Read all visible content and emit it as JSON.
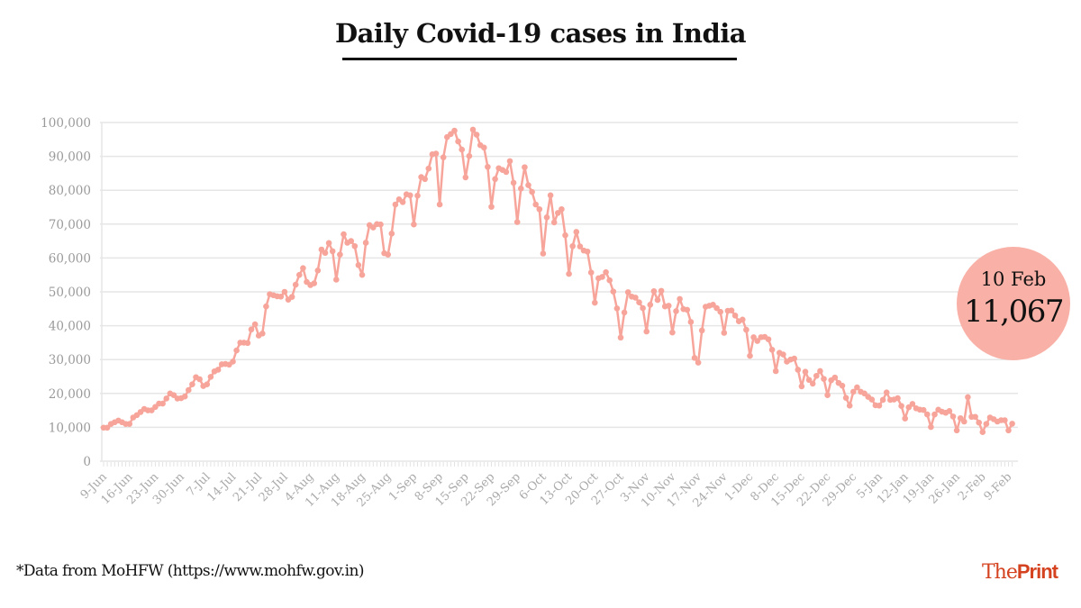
{
  "chart_data": {
    "type": "line",
    "title": "Daily Covid-19 cases in India",
    "xlabel": "",
    "ylabel": "",
    "ylim": [
      0,
      100000
    ],
    "y_ticks": [
      0,
      10000,
      20000,
      30000,
      40000,
      50000,
      60000,
      70000,
      80000,
      90000,
      100000
    ],
    "y_tick_labels": [
      "0",
      "10,000",
      "20,000",
      "30,000",
      "40,000",
      "50,000",
      "60,000",
      "70,000",
      "80,000",
      "90,000",
      "100,000"
    ],
    "x_range": [
      "9-Jun",
      "10-Feb"
    ],
    "x_tick_labels": [
      "9-Jun",
      "16-Jun",
      "23-Jun",
      "30-Jun",
      "7-Jul",
      "14-Jul",
      "21-Jul",
      "28-Jul",
      "4-Aug",
      "11-Aug",
      "18-Aug",
      "25-Aug",
      "1-Sep",
      "8-Sep",
      "15-Sep",
      "22-Sep",
      "29-Sep",
      "6-Oct",
      "13-Oct",
      "20-Oct",
      "27-Oct",
      "3-Nov",
      "10-Nov",
      "17-Nov",
      "24-Nov",
      "1-Dec",
      "8-Dec",
      "15-Dec",
      "22-Dec",
      "29-Dec",
      "5-Jan",
      "12-Jan",
      "19-Jan",
      "26-Jan",
      "2-Feb",
      "9-Feb"
    ],
    "grid": true,
    "line_color": "#f7a59b",
    "values": [
      9900,
      9900,
      11000,
      11500,
      12000,
      11500,
      11000,
      11000,
      12900,
      13600,
      14500,
      15400,
      15000,
      15000,
      16000,
      17000,
      17000,
      18500,
      20000,
      19500,
      18500,
      18600,
      19100,
      21000,
      22700,
      24800,
      24200,
      22200,
      22700,
      24900,
      26500,
      27000,
      28600,
      28700,
      28500,
      29400,
      32700,
      35000,
      35000,
      34900,
      38900,
      40400,
      37100,
      37700,
      45700,
      49300,
      49000,
      48700,
      48600,
      50000,
      47700,
      48500,
      52100,
      55000,
      57000,
      52900,
      52000,
      52500,
      56300,
      62500,
      61500,
      64400,
      62000,
      53600,
      61000,
      67000,
      64500,
      65000,
      63500,
      57900,
      55000,
      64500,
      69700,
      69000,
      70000,
      69900,
      61400,
      61000,
      67200,
      75800,
      77300,
      76500,
      78800,
      78500,
      69900,
      78400,
      83900,
      83300,
      86400,
      90600,
      90800,
      75800,
      89700,
      95700,
      96600,
      97600,
      94400,
      92000,
      83800,
      90100,
      97900,
      96400,
      93300,
      92600,
      86900,
      75100,
      83300,
      86500,
      86000,
      85400,
      88600,
      82200,
      70600,
      80500,
      86800,
      81500,
      79500,
      75800,
      74400,
      61300,
      72000,
      78500,
      70500,
      73300,
      74400,
      66700,
      55300,
      63500,
      67700,
      63400,
      62200,
      61900,
      55700,
      46800,
      54000,
      54400,
      55800,
      53400,
      50100,
      45100,
      36500,
      43900,
      49900,
      48600,
      48300,
      46900,
      45200,
      38300,
      46200,
      50200,
      47600,
      50300,
      45700,
      45900,
      38000,
      44300,
      47900,
      44900,
      44700,
      41100,
      30500,
      29100,
      38600,
      45600,
      45900,
      46200,
      45200,
      44100,
      37900,
      44400,
      44500,
      43000,
      41300,
      41800,
      38800,
      31100,
      36600,
      35500,
      36600,
      36700,
      36000,
      32900,
      26600,
      32000,
      31500,
      29400,
      30000,
      30300,
      27000,
      22100,
      26400,
      24000,
      22900,
      25200,
      26600,
      24300,
      19500,
      23900,
      24700,
      23100,
      22300,
      18700,
      16400,
      20500,
      21800,
      20500,
      20000,
      19000,
      18200,
      16500,
      16400,
      18100,
      20300,
      18100,
      18200,
      18600,
      16300,
      12600,
      15900,
      16900,
      15600,
      15200,
      15100,
      13800,
      10100,
      13800,
      15200,
      14600,
      14300,
      14800,
      13200,
      9100,
      12700,
      11700,
      18900,
      13100,
      13100,
      11400,
      8600,
      11000,
      12900,
      12400,
      11700,
      12100,
      12100,
      9100,
      11067
    ],
    "callout": {
      "date": "10 Feb",
      "value": "11,067",
      "color": "#f9b1a7"
    }
  },
  "footer": {
    "source": "*Data from MoHFW (https://www.mohfw.gov.in)",
    "logo_the": "The",
    "logo_print": "Print",
    "logo_color": "#d4421f"
  }
}
